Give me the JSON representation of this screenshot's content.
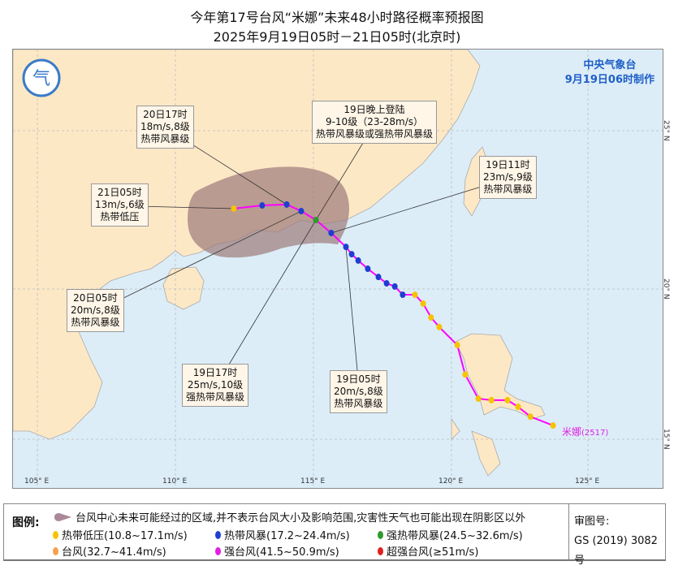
{
  "header": {
    "title": "今年第17号台风“米娜”未来48小时路径概率预报图",
    "subtitle": "2025年9月19日05时－21日05时(北京时)"
  },
  "agency": {
    "name": "中央气象台",
    "issued": "9月19日06时制作"
  },
  "typhoon": {
    "name": "米娜",
    "code": "(2517)"
  },
  "axes": {
    "lon_labels": [
      "105° E",
      "110° E",
      "115° E",
      "120° E",
      "125° E"
    ],
    "lat_labels": [
      "25° N",
      "20° N",
      "15° N"
    ]
  },
  "colors": {
    "sea": "#dcedf8",
    "land": "#fde8c6",
    "cone": "#9c7a7a",
    "track": "#ff00ff",
    "td": "#f5c400",
    "ts": "#1e3fd0",
    "sts": "#2e9a2e",
    "ty": "#f5a050",
    "sty": "#e020e0",
    "superty": "#e02020"
  },
  "track": [
    {
      "lon": 123.9,
      "lat": 15.69,
      "cat": "td"
    },
    {
      "lon": 123.07,
      "lat": 15.97,
      "cat": "td"
    },
    {
      "lon": 122.62,
      "lat": 16.28,
      "cat": "td"
    },
    {
      "lon": 122.23,
      "lat": 16.49,
      "cat": "td"
    },
    {
      "lon": 121.64,
      "lat": 16.49,
      "cat": "td"
    },
    {
      "lon": 121.16,
      "lat": 16.54,
      "cat": "td"
    },
    {
      "lon": 120.68,
      "lat": 17.3,
      "cat": "td"
    },
    {
      "lon": 120.39,
      "lat": 18.23,
      "cat": "td"
    },
    {
      "lon": 119.73,
      "lat": 18.8,
      "cat": "td"
    },
    {
      "lon": 119.43,
      "lat": 19.1,
      "cat": "td"
    },
    {
      "lon": 119.14,
      "lat": 19.54,
      "cat": "td"
    },
    {
      "lon": 118.84,
      "lat": 19.82,
      "cat": "td"
    },
    {
      "lon": 118.39,
      "lat": 19.82,
      "cat": "ts"
    },
    {
      "lon": 118.1,
      "lat": 20.08,
      "cat": "ts"
    },
    {
      "lon": 117.8,
      "lat": 20.18,
      "cat": "ts"
    },
    {
      "lon": 117.5,
      "lat": 20.38,
      "cat": "ts"
    },
    {
      "lon": 117.11,
      "lat": 20.64,
      "cat": "ts"
    },
    {
      "lon": 116.76,
      "lat": 20.9,
      "cat": "ts"
    },
    {
      "lon": 116.52,
      "lat": 21.1,
      "cat": "ts"
    },
    {
      "lon": 116.31,
      "lat": 21.33,
      "cat": "ts"
    },
    {
      "lon": 115.77,
      "lat": 21.77,
      "cat": "ts"
    },
    {
      "lon": 115.21,
      "lat": 22.18,
      "cat": "sts"
    },
    {
      "lon": 114.67,
      "lat": 22.46,
      "cat": "ts"
    },
    {
      "lon": 114.14,
      "lat": 22.67,
      "cat": "ts"
    },
    {
      "lon": 113.24,
      "lat": 22.64,
      "cat": "ts"
    },
    {
      "lon": 112.2,
      "lat": 22.54,
      "cat": "td"
    }
  ],
  "callouts": [
    {
      "id": "c1",
      "lines": [
        "20日17时",
        "18m/s,8级",
        "热带风暴级"
      ]
    },
    {
      "id": "c2",
      "lines": [
        "19日晚上登陆",
        "9-10级（23-28m/s）",
        "热带风暴级或强热带风暴级"
      ]
    },
    {
      "id": "c3",
      "lines": [
        "21日05时",
        "13m/s,6级",
        "热带低压"
      ]
    },
    {
      "id": "c4",
      "lines": [
        "19日11时",
        "23m/s,9级",
        "热带风暴级"
      ]
    },
    {
      "id": "c5",
      "lines": [
        "20日05时",
        "20m/s,8级",
        "热带风暴级"
      ]
    },
    {
      "id": "c6",
      "lines": [
        "19日17时",
        "25m/s,10级",
        "强热带风暴级"
      ]
    },
    {
      "id": "c7",
      "lines": [
        "19日05时",
        "20m/s,8级",
        "热带风暴级"
      ]
    }
  ],
  "legend": {
    "title": "图例:",
    "cone": "台风中心未来可能经过的区域,并不表示台风大小及影响范围,灾害性天气也可能出现在阴影区以外",
    "items": [
      {
        "label": "热带低压(10.8~17.1m/s)",
        "color": "#f5c400"
      },
      {
        "label": "热带风暴(17.2~24.4m/s)",
        "color": "#1e3fd0"
      },
      {
        "label": "强热带风暴(24.5~32.6m/s)",
        "color": "#2e9a2e"
      },
      {
        "label": "台风(32.7~41.4m/s)",
        "color": "#f5a050"
      },
      {
        "label": "强台风(41.5~50.9m/s)",
        "color": "#e020e0"
      },
      {
        "label": "超强台风(≥51m/s)",
        "color": "#e02020"
      }
    ],
    "approval_label": "审图号:",
    "approval_no": "GS (2019) 3082号"
  }
}
